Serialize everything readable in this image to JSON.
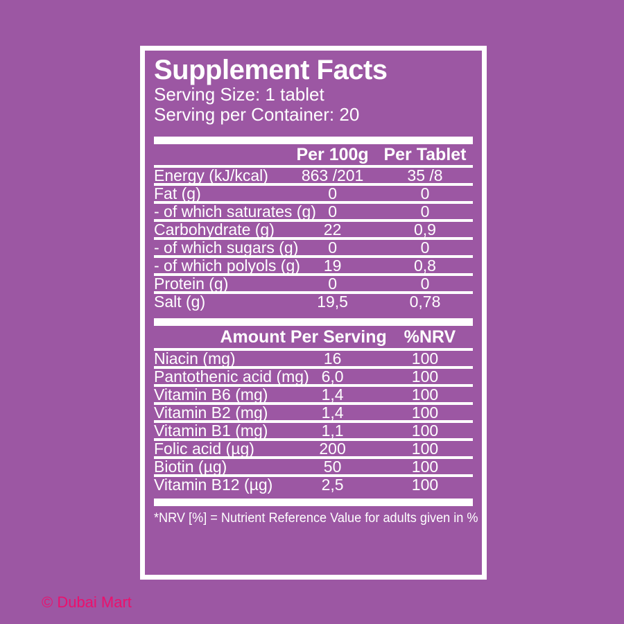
{
  "colors": {
    "background": "#9c57a3",
    "label_border": "#ffffff",
    "label_text": "#ffffff",
    "watermark": "#ec106c"
  },
  "label": {
    "title": "Supplement Facts",
    "serving_size": "Serving Size: 1 tablet",
    "serving_per_container": "Serving per Container: 20",
    "section1": {
      "col_per_100g": "Per 100g",
      "col_per_tablet": "Per Tablet",
      "rows": [
        {
          "name": "Energy (kJ/kcal)",
          "per_100g": "863 /201",
          "per_tablet": "35 /8"
        },
        {
          "name": "Fat (g)",
          "per_100g": "0",
          "per_tablet": "0"
        },
        {
          "name": "- of which saturates (g)",
          "per_100g": "0",
          "per_tablet": "0"
        },
        {
          "name": "Carbohydrate (g)",
          "per_100g": "22",
          "per_tablet": "0,9"
        },
        {
          "name": "- of which sugars (g)",
          "per_100g": "0",
          "per_tablet": "0"
        },
        {
          "name": "- of which polyols (g)",
          "per_100g": "19",
          "per_tablet": "0,8"
        },
        {
          "name": "Protein (g)",
          "per_100g": "0",
          "per_tablet": "0"
        },
        {
          "name": "Salt (g)",
          "per_100g": "19,5",
          "per_tablet": "0,78"
        }
      ]
    },
    "section2": {
      "col_amount_per_serving": "Amount Per Serving",
      "col_nrv": "%NRV",
      "rows": [
        {
          "name": "Niacin (mg)",
          "amount": "16",
          "nrv": "100"
        },
        {
          "name": "Pantothenic acid (mg)",
          "amount": "6,0",
          "nrv": "100"
        },
        {
          "name": "Vitamin B6 (mg)",
          "amount": "1,4",
          "nrv": "100"
        },
        {
          "name": "Vitamin B2 (mg)",
          "amount": "1,4",
          "nrv": "100"
        },
        {
          "name": "Vitamin B1 (mg)",
          "amount": "1,1",
          "nrv": "100"
        },
        {
          "name": "Folic acid (µg)",
          "amount": "200",
          "nrv": "100"
        },
        {
          "name": "Biotin (µg)",
          "amount": "50",
          "nrv": "100"
        },
        {
          "name": "Vitamin B12 (µg)",
          "amount": "2,5",
          "nrv": "100"
        }
      ]
    },
    "footnote": "*NRV [%] = Nutrient Reference Value for adults given in %"
  },
  "watermark": {
    "text": "© Dubai Mart"
  }
}
